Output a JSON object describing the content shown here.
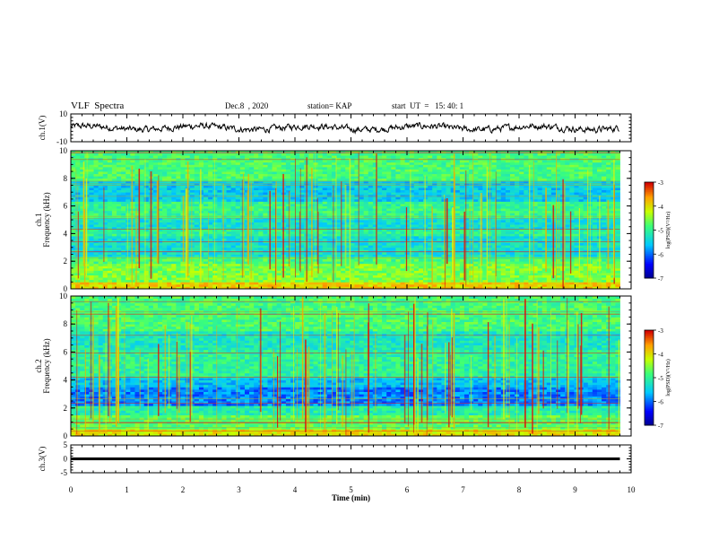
{
  "header": {
    "title": "VLF  Spectra",
    "date": "Dec.8  , 2020",
    "station": "station= KAP",
    "start": "start  UT  =   15: 40: 1"
  },
  "chart_data": [
    {
      "type": "line",
      "name": "ch1-voltage",
      "ylabel": "ch.1(V)",
      "ylim": [
        -10,
        10
      ],
      "yticks": [
        "10",
        "-10"
      ],
      "xlim": [
        0,
        10
      ]
    },
    {
      "type": "heatmap",
      "name": "ch1-spectrogram",
      "ylabel": "ch.1\nFrequency (kHz)",
      "ylim": [
        0,
        10
      ],
      "yticks": [
        "0",
        "2",
        "4",
        "6",
        "8",
        "10"
      ],
      "xlim": [
        0,
        9.8
      ],
      "colorbar": {
        "label": "log(PSD)(V²/Hz)",
        "range": [
          -7,
          -3
        ],
        "ticks": [
          "-3",
          "-4",
          "-5",
          "-6",
          "-7"
        ]
      }
    },
    {
      "type": "heatmap",
      "name": "ch2-spectrogram",
      "ylabel": "ch.2\nFrequency (kHz)",
      "ylim": [
        0,
        10
      ],
      "yticks": [
        "0",
        "2",
        "4",
        "6",
        "8",
        "10"
      ],
      "xlim": [
        0,
        9.8
      ],
      "colorbar": {
        "label": "log(PSD)(V²/Hz)",
        "range": [
          -7,
          -3
        ],
        "ticks": [
          "-3",
          "-4",
          "-5",
          "-6",
          "-7"
        ]
      }
    },
    {
      "type": "line",
      "name": "ch3-voltage",
      "ylabel": "ch.3(V)",
      "ylim": [
        -5,
        5
      ],
      "yticks": [
        "5",
        "0",
        "-5"
      ],
      "xlim": [
        0,
        10
      ],
      "band": [
        -0.5,
        0.5
      ]
    }
  ],
  "xaxis": {
    "label": "Time  (min)",
    "ticks": [
      "0",
      "1",
      "2",
      "3",
      "4",
      "5",
      "6",
      "7",
      "8",
      "9",
      "10"
    ]
  }
}
